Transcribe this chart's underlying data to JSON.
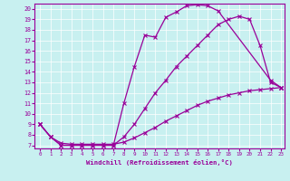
{
  "xlabel": "Windchill (Refroidissement éolien,°C)",
  "bg_color": "#c8f0f0",
  "line_color": "#990099",
  "xlim": [
    -0.5,
    23.3
  ],
  "ylim": [
    6.7,
    20.5
  ],
  "xticks": [
    0,
    1,
    2,
    3,
    4,
    5,
    6,
    7,
    8,
    9,
    10,
    11,
    12,
    13,
    14,
    15,
    16,
    17,
    18,
    19,
    20,
    21,
    22,
    23
  ],
  "yticks": [
    7,
    8,
    9,
    10,
    11,
    12,
    13,
    14,
    15,
    16,
    17,
    18,
    19,
    20
  ],
  "line1_x": [
    0,
    1,
    2,
    3,
    4,
    5,
    6,
    7,
    8,
    9,
    10,
    11,
    12,
    13,
    14,
    15,
    16,
    17,
    22,
    23
  ],
  "line1_y": [
    9.0,
    7.8,
    7.0,
    7.0,
    7.0,
    7.0,
    7.0,
    7.0,
    11.0,
    14.5,
    17.5,
    17.3,
    19.2,
    19.7,
    20.3,
    20.4,
    20.3,
    19.8,
    13.2,
    12.5
  ],
  "line2_x": [
    0,
    1,
    2,
    3,
    4,
    5,
    6,
    7,
    8,
    9,
    10,
    11,
    12,
    13,
    14,
    15,
    16,
    17,
    18,
    19,
    20,
    21,
    22,
    23
  ],
  "line2_y": [
    9.0,
    7.8,
    7.0,
    7.0,
    7.0,
    7.0,
    7.0,
    7.0,
    7.8,
    9.0,
    10.5,
    12.0,
    13.2,
    14.5,
    15.5,
    16.5,
    17.5,
    18.5,
    19.0,
    19.3,
    19.0,
    16.5,
    13.0,
    12.5
  ],
  "line3_x": [
    0,
    1,
    2,
    3,
    4,
    5,
    6,
    7,
    8,
    9,
    10,
    11,
    12,
    13,
    14,
    15,
    16,
    17,
    18,
    19,
    20,
    21,
    22,
    23
  ],
  "line3_y": [
    9.0,
    7.8,
    7.2,
    7.1,
    7.1,
    7.1,
    7.1,
    7.1,
    7.3,
    7.7,
    8.2,
    8.7,
    9.3,
    9.8,
    10.3,
    10.8,
    11.2,
    11.5,
    11.8,
    12.0,
    12.2,
    12.3,
    12.4,
    12.5
  ],
  "marker": "x",
  "markersize": 3,
  "linewidth": 0.9
}
